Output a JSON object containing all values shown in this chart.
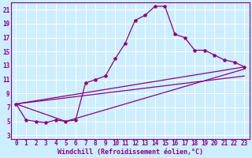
{
  "xlabel": "Windchill (Refroidissement éolien,°C)",
  "bg_color": "#cceeff",
  "grid_color": "#ffffff",
  "line_color": "#880088",
  "marker": "*",
  "xlim": [
    -0.5,
    23.5
  ],
  "ylim": [
    2.5,
    22.0
  ],
  "xticks": [
    0,
    1,
    2,
    3,
    4,
    5,
    6,
    7,
    8,
    9,
    10,
    11,
    12,
    13,
    14,
    15,
    16,
    17,
    18,
    19,
    20,
    21,
    22,
    23
  ],
  "yticks": [
    3,
    5,
    7,
    9,
    11,
    13,
    15,
    17,
    19,
    21
  ],
  "curve1_x": [
    0,
    1,
    2,
    3,
    4,
    5,
    6,
    7,
    8,
    9,
    10,
    11,
    12,
    13,
    14,
    15,
    16,
    17,
    18,
    19,
    20,
    21,
    22,
    23
  ],
  "curve1_y": [
    7.5,
    5.2,
    5.0,
    4.8,
    5.2,
    5.0,
    5.2,
    10.5,
    11.0,
    11.5,
    14.0,
    16.2,
    19.5,
    20.2,
    21.5,
    21.5,
    17.5,
    17.0,
    15.2,
    15.2,
    14.5,
    13.8,
    13.5,
    12.8
  ],
  "curve2_x": [
    0,
    5,
    23
  ],
  "curve2_y": [
    7.5,
    5.0,
    12.5
  ],
  "curve3_x": [
    0,
    23
  ],
  "curve3_y": [
    7.5,
    12.8
  ],
  "curve4_x": [
    0,
    23
  ],
  "curve4_y": [
    7.5,
    11.5
  ],
  "tick_fontsize": 5.5,
  "xlabel_fontsize": 6.0
}
